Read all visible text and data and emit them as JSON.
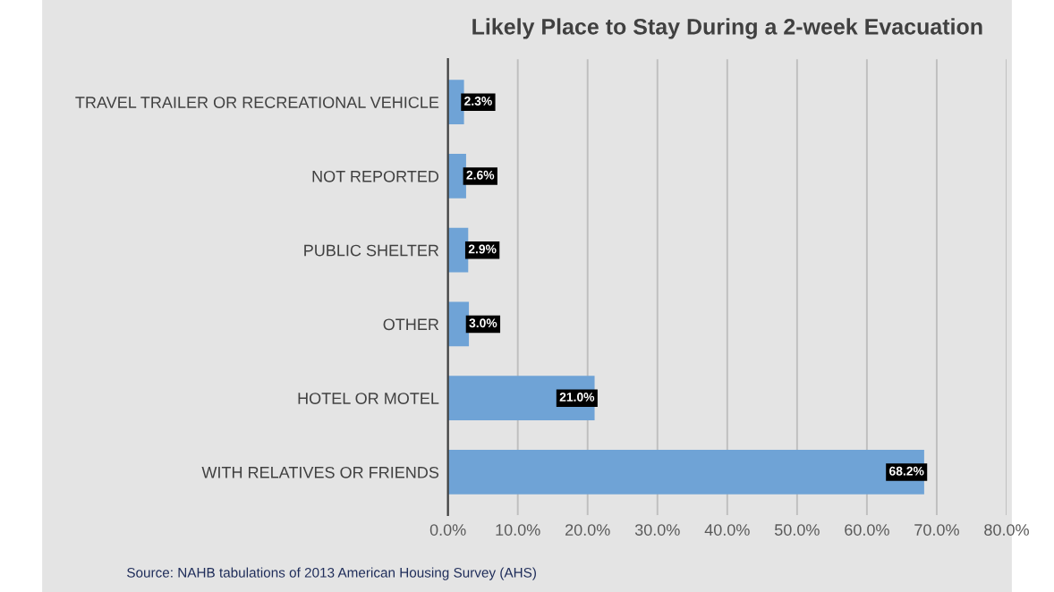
{
  "chart_data": {
    "type": "bar",
    "orientation": "horizontal",
    "title": "Likely Place to Stay During a 2-week Evacuation",
    "categories": [
      "TRAVEL TRAILER OR RECREATIONAL VEHICLE",
      "NOT REPORTED",
      "PUBLIC SHELTER",
      "OTHER",
      "HOTEL OR MOTEL",
      "WITH RELATIVES OR FRIENDS"
    ],
    "values": [
      2.3,
      2.6,
      2.9,
      3.0,
      21.0,
      68.2
    ],
    "value_labels": [
      "2.3%",
      "2.6%",
      "2.9%",
      "3.0%",
      "21.0%",
      "68.2%"
    ],
    "color": "#6fa3d6",
    "xlim": [
      0,
      80
    ],
    "xticks": [
      {
        "value": 0,
        "label": "0.0%"
      },
      {
        "value": 10,
        "label": "10.0%"
      },
      {
        "value": 20,
        "label": "20.0%"
      },
      {
        "value": 30,
        "label": "30.0%"
      },
      {
        "value": 40,
        "label": "40.0%"
      },
      {
        "value": 50,
        "label": "50.0%"
      },
      {
        "value": 60,
        "label": "60.0%"
      },
      {
        "value": 70,
        "label": "70.0%"
      },
      {
        "value": 80,
        "label": "80.0%"
      }
    ],
    "grid": "x",
    "legend": false,
    "annotations": [
      "Source: NAHB tabulations of 2013 American Housing Survey (AHS)"
    ]
  }
}
